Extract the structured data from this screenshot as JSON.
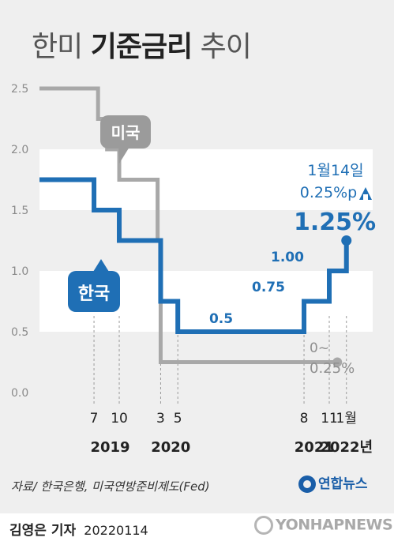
{
  "title": {
    "normal_prefix": "한미",
    "bold": "기준금리",
    "normal_suffix": "추이"
  },
  "chart_data": {
    "type": "line",
    "step": true,
    "ylim": [
      0.0,
      2.5
    ],
    "yticks": [
      "0.0",
      "0.5",
      "1.0",
      "1.5",
      "2.0",
      "2.5"
    ],
    "xticks": [
      {
        "label": "7",
        "t": 2019.54
      },
      {
        "label": "10",
        "t": 2019.79
      },
      {
        "label": "3",
        "t": 2020.2
      },
      {
        "label": "5",
        "t": 2020.37
      },
      {
        "label": "8",
        "t": 2021.62
      },
      {
        "label": "11",
        "t": 2021.87
      },
      {
        "label": "1월",
        "t": 2022.04
      }
    ],
    "year_labels": [
      {
        "label": "2019",
        "t": 2019.7
      },
      {
        "label": "2020",
        "t": 2020.3
      },
      {
        "label": "2021",
        "t": 2021.72
      },
      {
        "label": "2022년",
        "t": 2022.04
      }
    ],
    "x_range": [
      2019.0,
      2022.3
    ],
    "series": [
      {
        "name": "미국",
        "color": "#a8a8a8",
        "points": [
          {
            "t": 2019.0,
            "v": 2.5
          },
          {
            "t": 2019.58,
            "v": 2.25
          },
          {
            "t": 2019.67,
            "v": 2.0
          },
          {
            "t": 2019.79,
            "v": 1.75
          },
          {
            "t": 2020.17,
            "v": 1.25
          },
          {
            "t": 2020.2,
            "v": 0.25
          },
          {
            "t": 2021.95,
            "v": 0.25
          }
        ],
        "end_label": [
          "0~",
          "0.25%"
        ]
      },
      {
        "name": "한국",
        "color": "#1f6fb5",
        "points": [
          {
            "t": 2019.0,
            "v": 1.75
          },
          {
            "t": 2019.54,
            "v": 1.5
          },
          {
            "t": 2019.79,
            "v": 1.25
          },
          {
            "t": 2020.2,
            "v": 0.75
          },
          {
            "t": 2020.37,
            "v": 0.5
          },
          {
            "t": 2021.62,
            "v": 0.75
          },
          {
            "t": 2021.87,
            "v": 1.0
          },
          {
            "t": 2022.04,
            "v": 1.25
          }
        ],
        "value_labels": [
          {
            "text": "0.5",
            "t": 2021.0,
            "v": 0.5
          },
          {
            "text": "0.75",
            "t": 2021.74,
            "v": 0.75
          },
          {
            "text": "1.00",
            "t": 2021.96,
            "v": 1.0
          }
        ]
      }
    ],
    "annotation": {
      "lines": [
        "1월14일",
        "0.25%p"
      ],
      "arrow": "up",
      "value": "1.25%"
    },
    "callouts": {
      "us": "미국",
      "kr": "한국"
    }
  },
  "footer": {
    "source": "자료/ 한국은행, 미국연방준비제도(Fed)",
    "logo": "연합뉴스",
    "author": "김영은 기자",
    "date": "20220114",
    "watermark": "YONHAPNEWS"
  }
}
